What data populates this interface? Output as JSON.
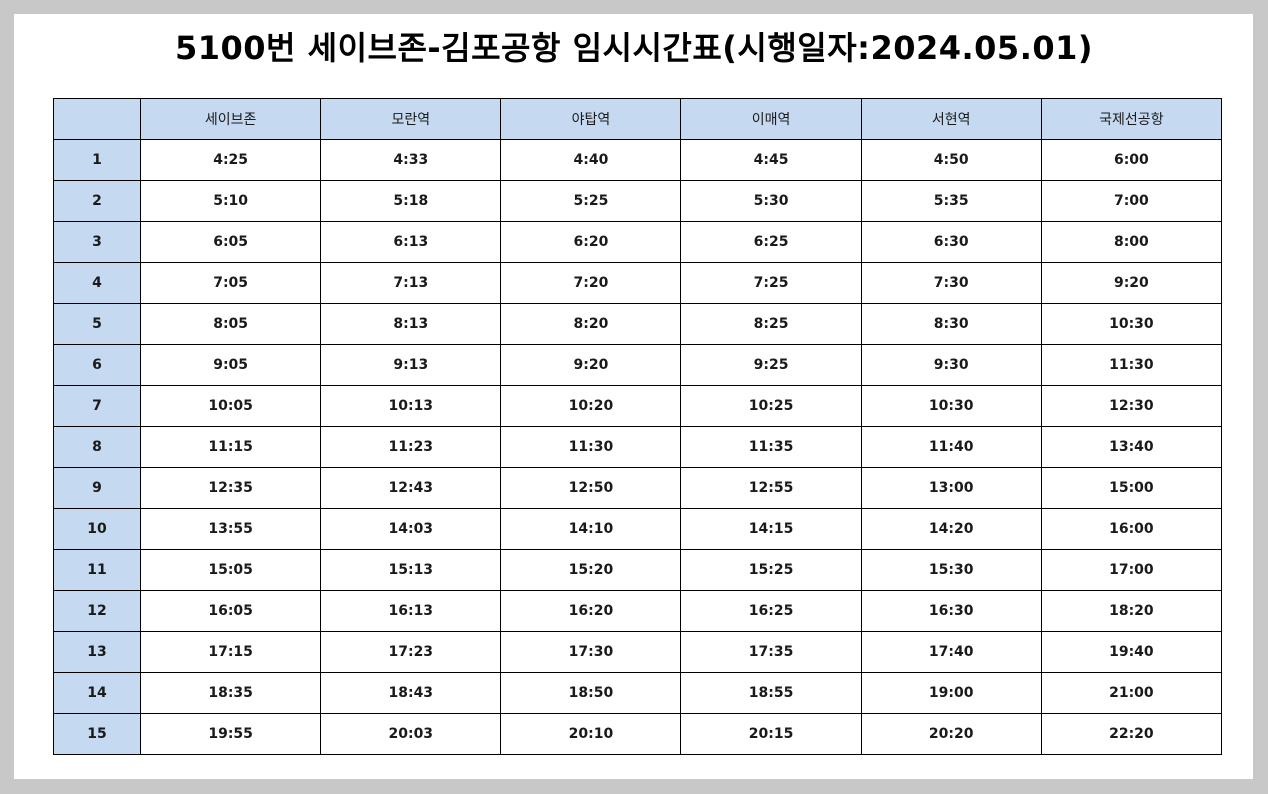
{
  "title": "5100번 세이브존-김포공항 임시시간표(시행일자:2024.05.01)",
  "colors": {
    "header_fill": "#c5d9f1",
    "background": "#c8c8c8",
    "sheet": "#ffffff",
    "border": "#000000"
  },
  "table": {
    "corner": "",
    "columns": [
      "세이브존",
      "모란역",
      "야탑역",
      "이매역",
      "서현역",
      "국제선공항"
    ],
    "rows": [
      {
        "no": "1",
        "times": [
          "4:25",
          "4:33",
          "4:40",
          "4:45",
          "4:50",
          "6:00"
        ]
      },
      {
        "no": "2",
        "times": [
          "5:10",
          "5:18",
          "5:25",
          "5:30",
          "5:35",
          "7:00"
        ]
      },
      {
        "no": "3",
        "times": [
          "6:05",
          "6:13",
          "6:20",
          "6:25",
          "6:30",
          "8:00"
        ]
      },
      {
        "no": "4",
        "times": [
          "7:05",
          "7:13",
          "7:20",
          "7:25",
          "7:30",
          "9:20"
        ]
      },
      {
        "no": "5",
        "times": [
          "8:05",
          "8:13",
          "8:20",
          "8:25",
          "8:30",
          "10:30"
        ]
      },
      {
        "no": "6",
        "times": [
          "9:05",
          "9:13",
          "9:20",
          "9:25",
          "9:30",
          "11:30"
        ]
      },
      {
        "no": "7",
        "times": [
          "10:05",
          "10:13",
          "10:20",
          "10:25",
          "10:30",
          "12:30"
        ]
      },
      {
        "no": "8",
        "times": [
          "11:15",
          "11:23",
          "11:30",
          "11:35",
          "11:40",
          "13:40"
        ]
      },
      {
        "no": "9",
        "times": [
          "12:35",
          "12:43",
          "12:50",
          "12:55",
          "13:00",
          "15:00"
        ]
      },
      {
        "no": "10",
        "times": [
          "13:55",
          "14:03",
          "14:10",
          "14:15",
          "14:20",
          "16:00"
        ]
      },
      {
        "no": "11",
        "times": [
          "15:05",
          "15:13",
          "15:20",
          "15:25",
          "15:30",
          "17:00"
        ]
      },
      {
        "no": "12",
        "times": [
          "16:05",
          "16:13",
          "16:20",
          "16:25",
          "16:30",
          "18:20"
        ]
      },
      {
        "no": "13",
        "times": [
          "17:15",
          "17:23",
          "17:30",
          "17:35",
          "17:40",
          "19:40"
        ]
      },
      {
        "no": "14",
        "times": [
          "18:35",
          "18:43",
          "18:50",
          "18:55",
          "19:00",
          "21:00"
        ]
      },
      {
        "no": "15",
        "times": [
          "19:55",
          "20:03",
          "20:10",
          "20:15",
          "20:20",
          "22:20"
        ]
      }
    ]
  }
}
